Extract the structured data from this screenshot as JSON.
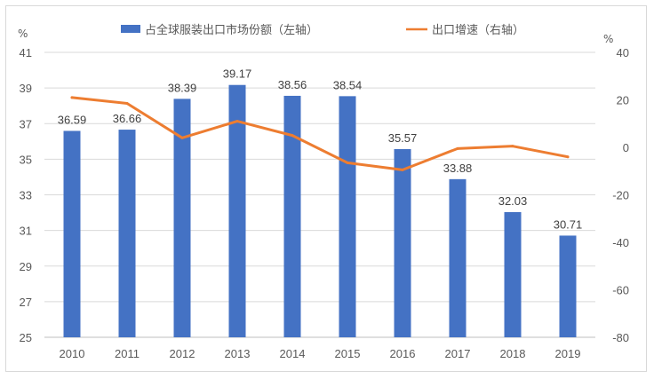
{
  "chart_data": {
    "type": "bar+line",
    "categories": [
      "2010",
      "2011",
      "2012",
      "2013",
      "2014",
      "2015",
      "2016",
      "2017",
      "2018",
      "2019"
    ],
    "series": [
      {
        "name": "占全球服装出口市场份额（左轴）",
        "type": "bar",
        "axis": "left",
        "color": "#4472C4",
        "values": [
          36.59,
          36.66,
          38.39,
          39.17,
          38.56,
          38.54,
          35.57,
          33.88,
          32.03,
          30.71
        ],
        "labels": [
          "36.59",
          "36.66",
          "38.39",
          "39.17",
          "38.56",
          "38.54",
          "35.57",
          "33.88",
          "32.03",
          "30.71"
        ]
      },
      {
        "name": "出口增速（右轴）",
        "type": "line",
        "axis": "right",
        "color": "#ED7D31",
        "values": [
          21,
          18.5,
          4,
          11,
          5,
          -6.5,
          -9.5,
          -0.5,
          0.5,
          -4
        ]
      }
    ],
    "y_left": {
      "unit": "%",
      "min": 25,
      "max": 41,
      "ticks": [
        "41",
        "39",
        "37",
        "35",
        "33",
        "31",
        "29",
        "27",
        "25"
      ]
    },
    "y_right": {
      "unit": "%",
      "min": -80,
      "max": 40,
      "ticks": [
        "40",
        "20",
        "0",
        "-20",
        "-40",
        "-60",
        "-80"
      ]
    },
    "legend_position": "top",
    "gridlines": true,
    "gridline_color": "#d9d9d9",
    "axis_color": "#bfbfbf"
  }
}
